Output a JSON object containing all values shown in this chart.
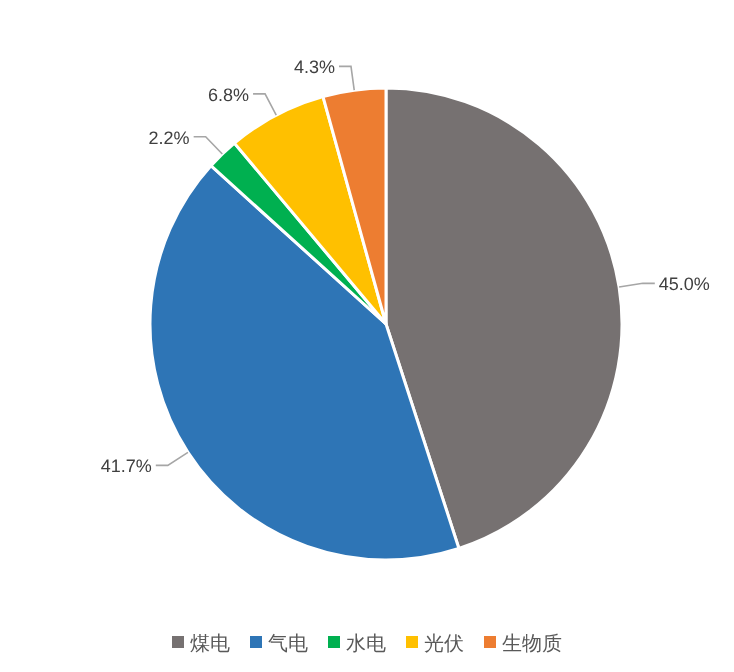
{
  "chart_data": {
    "type": "pie",
    "categories": [
      "煤电",
      "气电",
      "水电",
      "光伏",
      "生物质"
    ],
    "values": [
      45.0,
      41.7,
      2.2,
      6.8,
      4.3
    ],
    "value_labels": [
      "45.0%",
      "41.7%",
      "2.2%",
      "6.8%",
      "4.3%"
    ],
    "colors": [
      "#767171",
      "#2e75b6",
      "#00b050",
      "#ffc000",
      "#ed7d31"
    ],
    "legend": "bottom"
  }
}
